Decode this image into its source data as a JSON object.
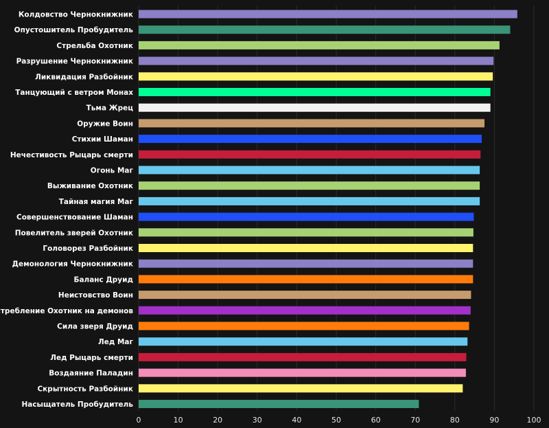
{
  "chart_data": {
    "type": "bar",
    "orientation": "horizontal",
    "categories": [
      "Колдовство Чернокнижник",
      "Опустошитель Пробудитель",
      "Стрельба Охотник",
      "Разрушение Чернокнижник",
      "Ликвидация Разбойник",
      "Танцующий с ветром Монах",
      "Тьма Жрец",
      "Оружие Воин",
      "Стихии Шаман",
      "Нечестивость Рыцарь смерти",
      "Огонь Маг",
      "Выживание Охотник",
      "Тайная магия Маг",
      "Совершенствование Шаман",
      "Повелитель зверей Охотник",
      "Головорез Разбойник",
      "Демонология Чернокнижник",
      "Баланс Друид",
      "Неистовство Воин",
      "Истребление Охотник на демонов",
      "Сила зверя Друид",
      "Лед Маг",
      "Лед Рыцарь смерти",
      "Воздаяние Паладин",
      "Скрытность Разбойник",
      "Насыщатель Пробудитель"
    ],
    "values": [
      95.8,
      94.0,
      91.3,
      89.8,
      89.6,
      89.0,
      89.0,
      87.5,
      86.8,
      86.5,
      86.3,
      86.3,
      86.3,
      84.8,
      84.7,
      84.6,
      84.6,
      84.6,
      84.1,
      84.0,
      83.6,
      83.2,
      82.9,
      82.8,
      82.0,
      70.9
    ],
    "colors": [
      "#8c80c6",
      "#3a9478",
      "#a8d174",
      "#8c80c6",
      "#fff36e",
      "#00ff96",
      "#f2f2f2",
      "#c69b6d",
      "#1f4ff5",
      "#c41e3a",
      "#68c8eb",
      "#a8d174",
      "#68c8eb",
      "#1f4ff5",
      "#a8d174",
      "#fff36e",
      "#8c80c6",
      "#ff7c0a",
      "#c69b6d",
      "#a330c9",
      "#ff7c0a",
      "#68c8eb",
      "#c41e3a",
      "#f48cba",
      "#fff36e",
      "#3a9478"
    ],
    "xlim": [
      0,
      100
    ],
    "xticks": [
      0,
      10,
      20,
      30,
      40,
      50,
      60,
      70,
      80,
      90,
      100
    ],
    "grid": "vertical",
    "title": "",
    "xlabel": "",
    "ylabel": ""
  }
}
